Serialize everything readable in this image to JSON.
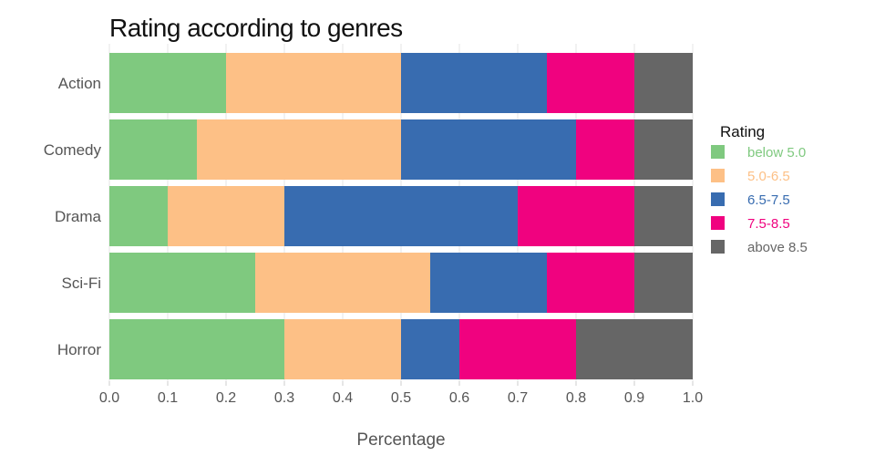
{
  "chart_data": {
    "type": "bar",
    "orientation": "horizontal",
    "stacked": true,
    "title": "Rating according to genres",
    "xlabel": "Percentage",
    "ylabel": "",
    "xlim": [
      0,
      1
    ],
    "x_ticks": [
      "0.0",
      "0.1",
      "0.2",
      "0.3",
      "0.4",
      "0.5",
      "0.6",
      "0.7",
      "0.8",
      "0.9",
      "1.0"
    ],
    "categories": [
      "Action",
      "Comedy",
      "Drama",
      "Sci-Fi",
      "Horror"
    ],
    "legend": {
      "title": "Rating",
      "placement": "right"
    },
    "series": [
      {
        "name": "below 5.0",
        "color": "#7fc97f",
        "values": [
          0.2,
          0.15,
          0.1,
          0.25,
          0.3
        ]
      },
      {
        "name": "5.0-6.5",
        "color": "#fdc086",
        "values": [
          0.3,
          0.35,
          0.2,
          0.3,
          0.2
        ]
      },
      {
        "name": "6.5-7.5",
        "color": "#386cb0",
        "values": [
          0.25,
          0.3,
          0.4,
          0.2,
          0.1
        ]
      },
      {
        "name": "7.5-8.5",
        "color": "#f0027f",
        "values": [
          0.15,
          0.1,
          0.2,
          0.15,
          0.2
        ]
      },
      {
        "name": "above 8.5",
        "color": "#666666",
        "values": [
          0.1,
          0.1,
          0.1,
          0.1,
          0.2
        ]
      }
    ],
    "grid": true
  }
}
